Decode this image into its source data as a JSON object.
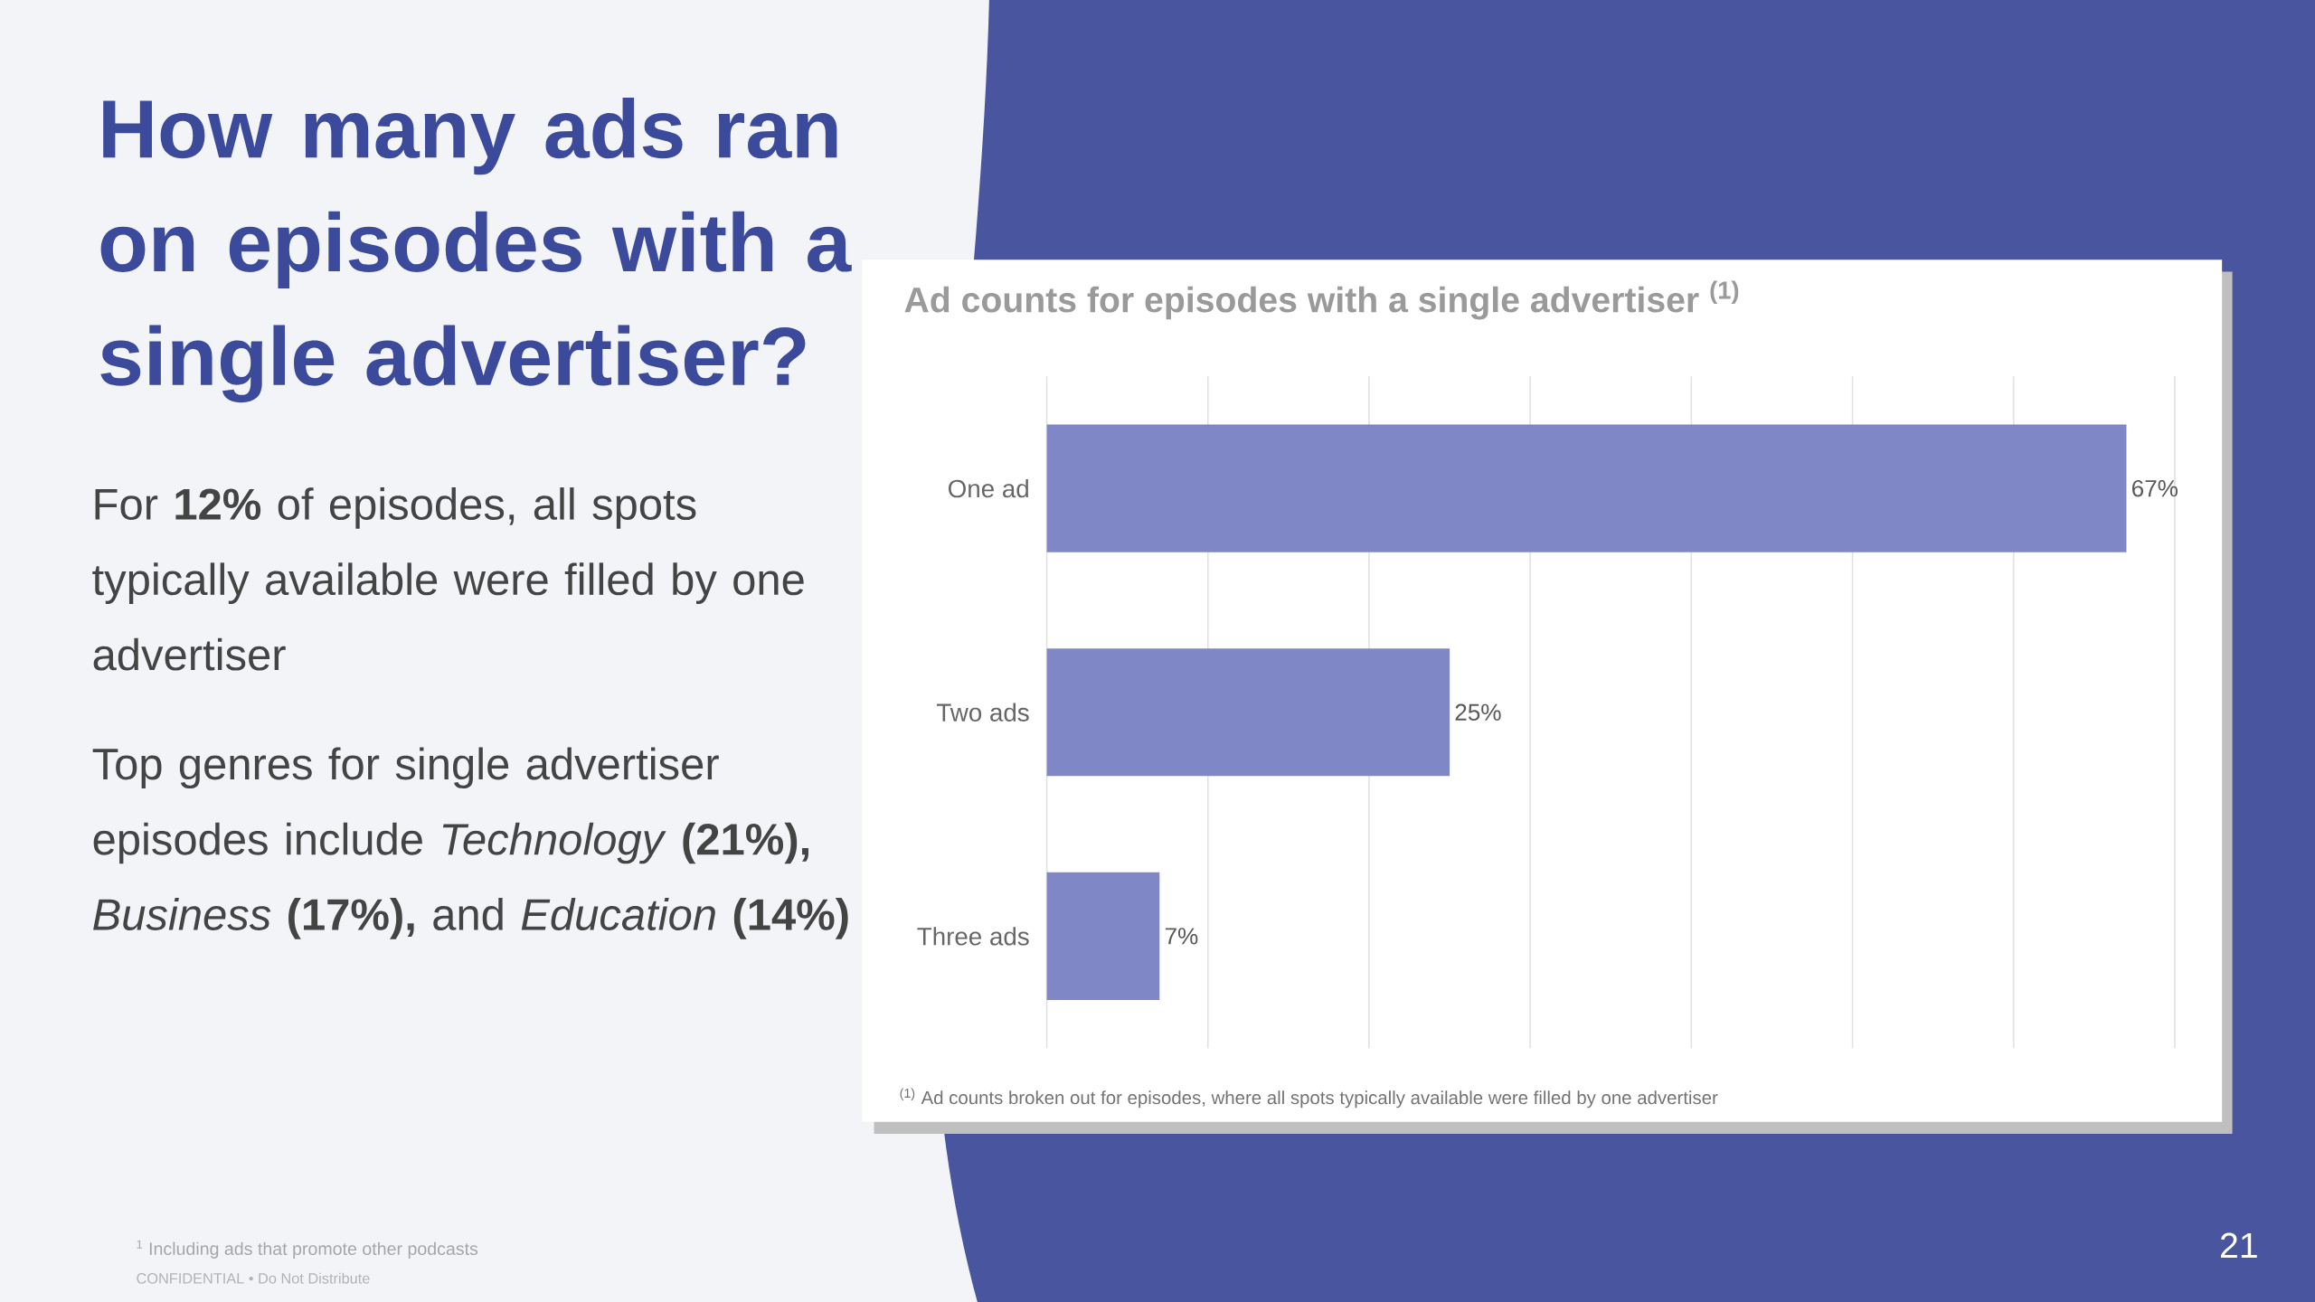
{
  "chart_data": {
    "type": "bar",
    "orientation": "horizontal",
    "title": "How many ads ran on episodes with a single advertiser?",
    "subtitle": "Ad counts for episodes with a single advertiser $^{(1)}$",
    "categories": [
      "One ad",
      "Two ads",
      "Three ads"
    ],
    "values": [
      67,
      25,
      7
    ],
    "value_labels": [
      "67%",
      "25%",
      "7%"
    ],
    "color": "#7f87c6",
    "xlim": [
      0,
      70
    ],
    "xticks": [
      {
        "value": 0,
        "label": null
      },
      {
        "value": 10,
        "label": null
      },
      {
        "value": 20,
        "label": null
      },
      {
        "value": 30,
        "label": null
      },
      {
        "value": 40,
        "label": null
      },
      {
        "value": 50,
        "label": null
      },
      {
        "value": 60,
        "label": null
      },
      {
        "value": 70,
        "label": null
      }
    ],
    "grid": "x",
    "tick_labels": "y",
    "annotations": [
      "For **12%** of episodes, all spots typically available were filled by one advertiser",
      "Top genres for single advertiser episodes include *Technology* **(21%),** *Business* **(17%),** and *Education* **(14%)**",
      "$^{(1)}$ Ad counts broken out for episodes, where all spots typically available were filled by one advertiser",
      "$^{1}$ Including ads that promote other podcasts",
      "CONFIDENTIAL • Do Not Distribute",
      "21"
    ]
  }
}
